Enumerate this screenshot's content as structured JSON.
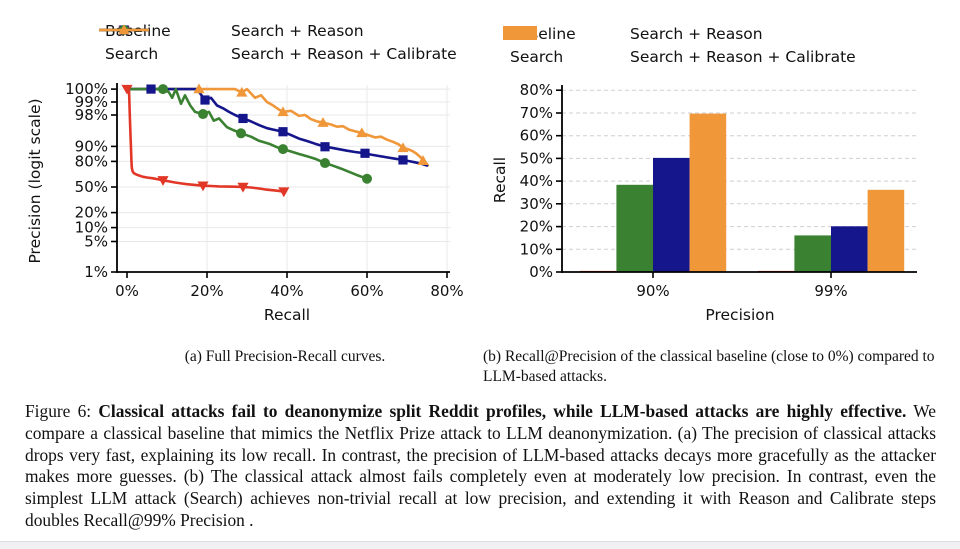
{
  "panel_a": {
    "caption": "(a) Full Precision-Recall curves.",
    "legend": [
      {
        "label": "Baseline",
        "color": "#e23727",
        "marker": "triangle-down"
      },
      {
        "label": "Search + Reason",
        "color": "#15158c",
        "marker": "square"
      },
      {
        "label": "Search",
        "color": "#3b8132",
        "marker": "circle"
      },
      {
        "label": "Search + Reason + Calibrate",
        "color": "#f0973a",
        "marker": "triangle-up"
      }
    ]
  },
  "panel_b": {
    "caption": "(b) Recall@Precision of the classical baseline (close to 0%) compared to LLM-based attacks.",
    "legend": [
      {
        "label": "Baseline",
        "color": "#e23727"
      },
      {
        "label": "Search + Reason",
        "color": "#15158c"
      },
      {
        "label": "Search",
        "color": "#3b8132"
      },
      {
        "label": "Search + Reason + Calibrate",
        "color": "#f0973a"
      }
    ]
  },
  "figure_caption": {
    "prefix": "Figure 6: ",
    "bold": "Classical attacks fail to deanonymize split Reddit profiles, while LLM-based attacks are highly effective.",
    "rest": " We compare a classical baseline that mimics the Netflix Prize attack to LLM deanonymization. (a) The precision of classical attacks drops very fast, explaining its low recall. In contrast, the precision of LLM-based attacks decays more gracefully as the attacker makes more guesses. (b) The classical attack almost fails completely even at moderately low precision. In contrast, even the simplest LLM attack (Search) achieves non-trivial recall at low precision, and extending it with Reason and Calibrate steps doubles Recall@99% Precision ."
  },
  "chart_data": [
    {
      "type": "line",
      "title": "",
      "xlabel": "Recall",
      "ylabel": "Precision (logit scale)",
      "y_scale": "logit",
      "x_ticks": [
        0,
        20,
        40,
        60,
        80
      ],
      "x_tick_labels": [
        "0%",
        "20%",
        "40%",
        "60%",
        "80%"
      ],
      "y_ticks": [
        100,
        99,
        98,
        90,
        80,
        50,
        20,
        10,
        5,
        1
      ],
      "y_tick_labels": [
        "100%",
        "99%",
        "98%",
        "90%",
        "80%",
        "50%",
        "20%",
        "10%",
        "5%",
        "1%"
      ],
      "xlim": [
        0,
        80
      ],
      "grid": true,
      "legend_position": "top",
      "series": [
        {
          "name": "Baseline",
          "color": "#e23727",
          "marker": "triangle-down",
          "points": [
            [
              0,
              100
            ],
            [
              0.5,
              99.5
            ],
            [
              0.7,
              98
            ],
            [
              0.85,
              95
            ],
            [
              1,
              89
            ],
            [
              1.1,
              81
            ],
            [
              1.2,
              74
            ],
            [
              1.4,
              70
            ],
            [
              1.7,
              68
            ],
            [
              2.2,
              66.5
            ],
            [
              3,
              65
            ],
            [
              4,
              63.5
            ],
            [
              5,
              62.5
            ],
            [
              6.5,
              61.5
            ],
            [
              8,
              60
            ],
            [
              9,
              59
            ],
            [
              10.5,
              57.5
            ],
            [
              12,
              56
            ],
            [
              13.5,
              54.8
            ],
            [
              15,
              53.8
            ],
            [
              17,
              52.8
            ],
            [
              19,
              51.8
            ],
            [
              21,
              51.3
            ],
            [
              23,
              50.8
            ],
            [
              25,
              50.6
            ],
            [
              27,
              50.4
            ],
            [
              29,
              50
            ],
            [
              31,
              49.3
            ],
            [
              33,
              48
            ],
            [
              34.5,
              46.8
            ],
            [
              36,
              45.8
            ],
            [
              37.5,
              45
            ],
            [
              39.2,
              43.8
            ]
          ],
          "marker_points": [
            [
              0,
              100
            ],
            [
              9,
              59
            ],
            [
              19,
              51.8
            ],
            [
              29,
              50
            ],
            [
              39.2,
              43.8
            ]
          ]
        },
        {
          "name": "Search",
          "color": "#3b8132",
          "marker": "circle",
          "points": [
            [
              0,
              100
            ],
            [
              9.5,
              100
            ],
            [
              10.5,
              99.4
            ],
            [
              11.3,
              99.2
            ],
            [
              12.2,
              99.6
            ],
            [
              13.5,
              98.9
            ],
            [
              14.5,
              99.3
            ],
            [
              15.8,
              98.8
            ],
            [
              17,
              98.3
            ],
            [
              19,
              98.1
            ],
            [
              20.5,
              98.3
            ],
            [
              21.7,
              97.3
            ],
            [
              23,
              97.6
            ],
            [
              25,
              96.2
            ],
            [
              26.5,
              95.6
            ],
            [
              28.5,
              94.8
            ],
            [
              31,
              93.8
            ],
            [
              33,
              92.4
            ],
            [
              35.5,
              91.2
            ],
            [
              37.5,
              89.6
            ],
            [
              39,
              88.6
            ],
            [
              41,
              87.2
            ],
            [
              43,
              85.6
            ],
            [
              45,
              84
            ],
            [
              47,
              82.2
            ],
            [
              49.5,
              78.5
            ],
            [
              51.5,
              76
            ],
            [
              53.5,
              73
            ],
            [
              55.5,
              69.5
            ],
            [
              57.5,
              65.5
            ],
            [
              60,
              61
            ]
          ],
          "marker_points": [
            [
              9,
              100
            ],
            [
              19,
              98.1
            ],
            [
              28.5,
              94.8
            ],
            [
              39,
              88.6
            ],
            [
              49.5,
              78.5
            ],
            [
              60,
              61
            ]
          ]
        },
        {
          "name": "Search + Reason",
          "color": "#15158c",
          "marker": "square",
          "points": [
            [
              0,
              100
            ],
            [
              16,
              100
            ],
            [
              17,
              99.7
            ],
            [
              17.5,
              99.6
            ],
            [
              19.5,
              99.1
            ],
            [
              21,
              99.2
            ],
            [
              22.5,
              98.8
            ],
            [
              24,
              98.6
            ],
            [
              25.5,
              98.3
            ],
            [
              27,
              98
            ],
            [
              29,
              97.6
            ],
            [
              31,
              97.2
            ],
            [
              33,
              96.6
            ],
            [
              35,
              96
            ],
            [
              37,
              95.6
            ],
            [
              39,
              95.2
            ],
            [
              41,
              94.3
            ],
            [
              43,
              93.2
            ],
            [
              45,
              92.3
            ],
            [
              47,
              91.2
            ],
            [
              49.5,
              89.8
            ],
            [
              51,
              89.3
            ],
            [
              53,
              88.5
            ],
            [
              55,
              87.7
            ],
            [
              57,
              86.9
            ],
            [
              59.5,
              86.1
            ],
            [
              61,
              85.2
            ],
            [
              63,
              84.2
            ],
            [
              65,
              83.2
            ],
            [
              67,
              82.2
            ],
            [
              69,
              81.2
            ],
            [
              70.5,
              80.2
            ],
            [
              72,
              79.2
            ],
            [
              73.5,
              78
            ],
            [
              75,
              76.2
            ]
          ],
          "marker_points": [
            [
              6,
              100
            ],
            [
              19.5,
              99.1
            ],
            [
              29,
              97.6
            ],
            [
              39,
              95.2
            ],
            [
              49.5,
              89.8
            ],
            [
              59.5,
              86.1
            ],
            [
              69,
              81.2
            ]
          ]
        },
        {
          "name": "Search + Reason + Calibrate",
          "color": "#f0973a",
          "marker": "triangle-up",
          "points": [
            [
              0,
              100
            ],
            [
              25.5,
              100
            ],
            [
              27,
              99.8
            ],
            [
              28.7,
              99.4
            ],
            [
              30,
              99.5
            ],
            [
              32,
              99.2
            ],
            [
              33.5,
              99.3
            ],
            [
              35,
              99
            ],
            [
              36.5,
              98.8
            ],
            [
              38,
              98.5
            ],
            [
              39,
              98.3
            ],
            [
              41,
              98.4
            ],
            [
              43,
              97.9
            ],
            [
              44.5,
              98
            ],
            [
              46,
              97.5
            ],
            [
              47.5,
              97.2
            ],
            [
              49,
              97
            ],
            [
              51,
              96.7
            ],
            [
              52.5,
              96.3
            ],
            [
              54,
              96.4
            ],
            [
              55.5,
              95.7
            ],
            [
              57,
              95.3
            ],
            [
              58.7,
              94.9
            ],
            [
              60.5,
              94.2
            ],
            [
              62,
              93.6
            ],
            [
              63.5,
              93.8
            ],
            [
              65,
              92.8
            ],
            [
              66.5,
              92
            ],
            [
              68,
              90.8
            ],
            [
              69,
              89.2
            ],
            [
              70.2,
              88.6
            ],
            [
              71.2,
              87.6
            ],
            [
              72.2,
              86.2
            ],
            [
              73.2,
              83.8
            ],
            [
              74.2,
              80.8
            ],
            [
              75.2,
              76.5
            ]
          ],
          "marker_points": [
            [
              18,
              100
            ],
            [
              28.7,
              99.4
            ],
            [
              39,
              98.3
            ],
            [
              49,
              97
            ],
            [
              58.7,
              94.9
            ],
            [
              69,
              89.2
            ],
            [
              74,
              80.5
            ]
          ]
        }
      ]
    },
    {
      "type": "bar",
      "title": "",
      "xlabel": "Precision",
      "ylabel": "Recall",
      "categories": [
        "90%",
        "99%"
      ],
      "ylim": [
        0,
        80
      ],
      "y_ticks": [
        0,
        10,
        20,
        30,
        40,
        50,
        60,
        70,
        80
      ],
      "y_tick_labels": [
        "0%",
        "10%",
        "20%",
        "30%",
        "40%",
        "50%",
        "60%",
        "70%",
        "80%"
      ],
      "grid": true,
      "legend_position": "top",
      "series": [
        {
          "name": "Baseline",
          "color": "#e23727",
          "values": [
            0.5,
            0.5
          ]
        },
        {
          "name": "Search",
          "color": "#3b8132",
          "values": [
            38.4,
            16.1
          ]
        },
        {
          "name": "Search + Reason",
          "color": "#15158c",
          "values": [
            50.2,
            20.1
          ]
        },
        {
          "name": "Search + Reason + Calibrate",
          "color": "#f0973a",
          "values": [
            69.7,
            36.2
          ]
        }
      ]
    }
  ]
}
